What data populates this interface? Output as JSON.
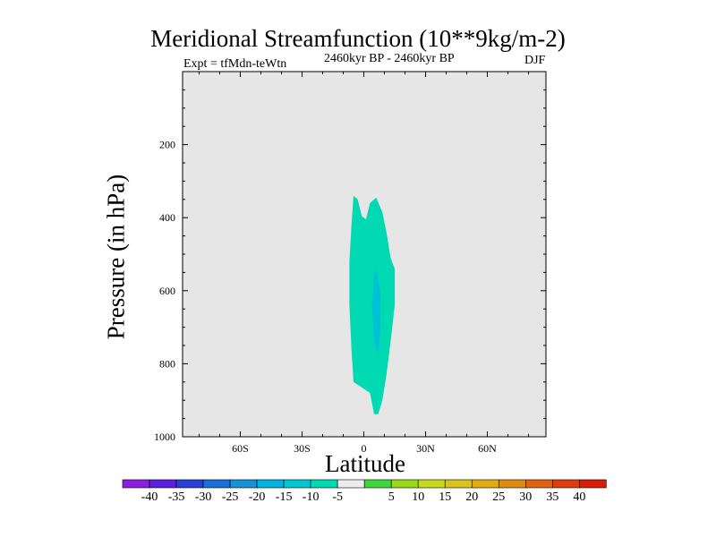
{
  "chart_data": {
    "type": "contour",
    "title": "Meridional Streamfunction (10**9kg/m-2)",
    "left_string": "Expt = tfMdn-teWtn",
    "center_string": "2460kyr BP - 2460kyr BP",
    "right_string": "DJF",
    "xlabel": "Latitude",
    "ylabel": "Pressure (in hPa)",
    "x_ticks": [
      {
        "value": -60,
        "label": "60S"
      },
      {
        "value": -30,
        "label": "30S"
      },
      {
        "value": 0,
        "label": "0"
      },
      {
        "value": 30,
        "label": "30N"
      },
      {
        "value": 60,
        "label": "60N"
      }
    ],
    "y_ticks": [
      {
        "value": 200,
        "label": "200"
      },
      {
        "value": 400,
        "label": "400"
      },
      {
        "value": 600,
        "label": "600"
      },
      {
        "value": 800,
        "label": "800"
      },
      {
        "value": 1000,
        "label": "1000"
      }
    ],
    "xlim": [
      -90,
      90
    ],
    "ylim": [
      1000,
      10
    ],
    "background_color": "#e6e6e6",
    "contour_regions": [
      {
        "level": "-10 to -5",
        "color": "#00d9b2",
        "outline": [
          [
            -5,
            340
          ],
          [
            -3,
            350
          ],
          [
            -1,
            395
          ],
          [
            1,
            405
          ],
          [
            3,
            360
          ],
          [
            6,
            345
          ],
          [
            9,
            385
          ],
          [
            11,
            440
          ],
          [
            13,
            510
          ],
          [
            15,
            540
          ],
          [
            15,
            640
          ],
          [
            13,
            740
          ],
          [
            11,
            830
          ],
          [
            9,
            900
          ],
          [
            7,
            938
          ],
          [
            5,
            938
          ],
          [
            3,
            880
          ],
          [
            -1,
            865
          ],
          [
            -5,
            850
          ],
          [
            -6,
            760
          ],
          [
            -7,
            640
          ],
          [
            -7,
            520
          ],
          [
            -6,
            420
          ]
        ]
      },
      {
        "level": "-15 to -10",
        "color": "#00c0d8",
        "outline": [
          [
            6,
            540
          ],
          [
            8,
            600
          ],
          [
            8,
            700
          ],
          [
            7,
            775
          ],
          [
            5,
            740
          ],
          [
            4,
            640
          ],
          [
            5,
            560
          ]
        ]
      }
    ],
    "colorbar": {
      "colors": [
        "#8b1fe0",
        "#5b1fe0",
        "#2a3fd8",
        "#1a6fd8",
        "#1592d8",
        "#00b2e0",
        "#00c8d0",
        "#00d9b2",
        "#ececec",
        "#3ed83e",
        "#9ad81c",
        "#c8d81c",
        "#d8c41c",
        "#e0ac12",
        "#e08a10",
        "#e06410",
        "#e03c10",
        "#d81c08"
      ],
      "labels": [
        "-40",
        "-35",
        "-30",
        "-25",
        "-20",
        "-15",
        "-10",
        "-5",
        "5",
        "10",
        "15",
        "20",
        "25",
        "30",
        "35",
        "40"
      ]
    }
  }
}
